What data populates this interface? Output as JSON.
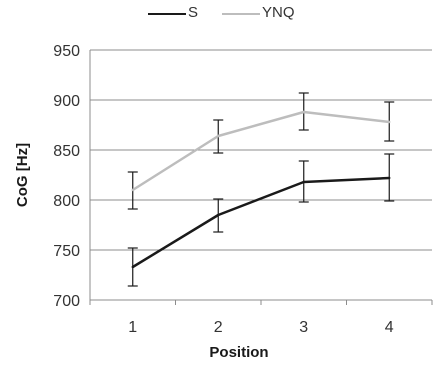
{
  "chart_data": {
    "type": "line",
    "title": "",
    "xlabel": "Position",
    "ylabel": "CoG [Hz]",
    "x": [
      1,
      2,
      3,
      4
    ],
    "x_tick_labels": [
      "1",
      "2",
      "3",
      "4"
    ],
    "ylim": [
      700,
      950
    ],
    "y_ticks": [
      700,
      750,
      800,
      850,
      900,
      950
    ],
    "y_tick_labels": [
      "700",
      "750",
      "800",
      "850",
      "900",
      "950"
    ],
    "grid": "horizontal",
    "legend_position": "top",
    "series": [
      {
        "name": "S",
        "color": "#1a1a1a",
        "values": [
          733,
          785,
          818,
          822
        ],
        "error_low": [
          714,
          768,
          798,
          799
        ],
        "error_high": [
          752,
          801,
          839,
          846
        ]
      },
      {
        "name": "YNQ",
        "color": "#bdbdbd",
        "values": [
          810,
          864,
          888,
          878
        ],
        "error_low": [
          791,
          847,
          870,
          859
        ],
        "error_high": [
          828,
          880,
          907,
          898
        ]
      }
    ]
  }
}
